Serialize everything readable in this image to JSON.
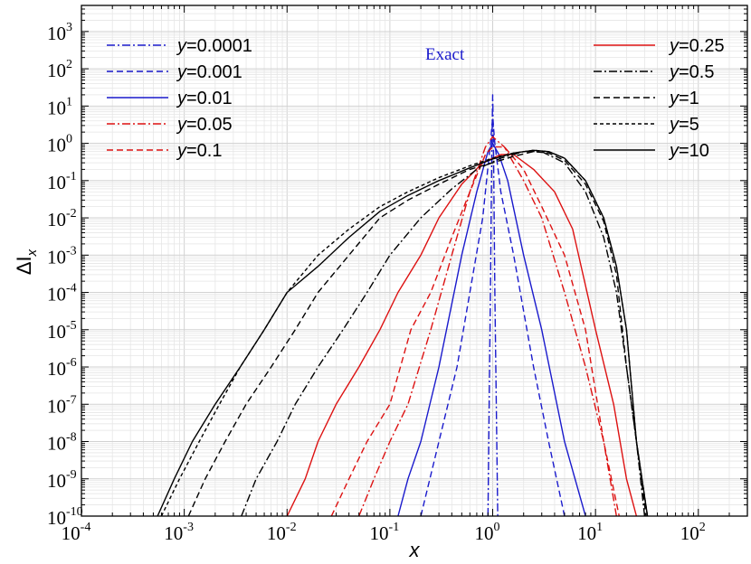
{
  "chart_data": {
    "type": "line",
    "xlabel": "x",
    "ylabel": "ΔI",
    "ylabel_sub": "x",
    "xscale": "log",
    "yscale": "log",
    "xlim": [
      0.0001,
      300
    ],
    "ylim": [
      1e-10,
      5000
    ],
    "grid": true,
    "annotation": "Exact",
    "annotation_color": "#1a1acc",
    "x_ticks": [
      {
        "base": "10",
        "exp": "-4",
        "value": 0.0001
      },
      {
        "base": "10",
        "exp": "-3",
        "value": 0.001
      },
      {
        "base": "10",
        "exp": "-2",
        "value": 0.01
      },
      {
        "base": "10",
        "exp": "-1",
        "value": 0.1
      },
      {
        "base": "10",
        "exp": "0",
        "value": 1
      },
      {
        "base": "10",
        "exp": "1",
        "value": 10
      },
      {
        "base": "10",
        "exp": "2",
        "value": 100
      }
    ],
    "y_ticks": [
      {
        "base": "10",
        "exp": "-10",
        "value": 1e-10
      },
      {
        "base": "10",
        "exp": "-9",
        "value": 1e-09
      },
      {
        "base": "10",
        "exp": "-8",
        "value": 1e-08
      },
      {
        "base": "10",
        "exp": "-7",
        "value": 1e-07
      },
      {
        "base": "10",
        "exp": "-6",
        "value": 1e-06
      },
      {
        "base": "10",
        "exp": "-5",
        "value": 1e-05
      },
      {
        "base": "10",
        "exp": "-4",
        "value": 0.0001
      },
      {
        "base": "10",
        "exp": "-3",
        "value": 0.001
      },
      {
        "base": "10",
        "exp": "-2",
        "value": 0.01
      },
      {
        "base": "10",
        "exp": "-1",
        "value": 0.1
      },
      {
        "base": "10",
        "exp": "0",
        "value": 1
      },
      {
        "base": "10",
        "exp": "1",
        "value": 10
      },
      {
        "base": "10",
        "exp": "2",
        "value": 100
      },
      {
        "base": "10",
        "exp": "3",
        "value": 1000
      }
    ],
    "legend_left": [
      "s0",
      "s1",
      "s2",
      "s3",
      "s4"
    ],
    "legend_right": [
      "s5",
      "s6",
      "s7",
      "s8",
      "s9"
    ],
    "legend_prefix": "y",
    "series": [
      {
        "id": "s0",
        "name": "=0.0001",
        "color": "#1a1acc",
        "dash": "dashdot",
        "x": [
          0.9,
          0.95,
          0.98,
          1.0,
          1.02,
          1.05,
          1.12
        ],
        "y": [
          1e-10,
          0.0001,
          0.5,
          20,
          0.5,
          0.0001,
          1e-10
        ]
      },
      {
        "id": "s1",
        "name": "=0.001",
        "color": "#1a1acc",
        "dash": "dashed",
        "x": [
          0.2,
          0.3,
          0.45,
          0.6,
          0.8,
          0.95,
          1.0,
          1.05,
          1.2,
          1.6,
          2.5,
          3.5,
          5.0
        ],
        "y": [
          1e-10,
          1e-08,
          1e-06,
          0.0001,
          0.01,
          1.0,
          5.0,
          1.0,
          0.05,
          0.001,
          1e-06,
          1e-08,
          1e-10
        ]
      },
      {
        "id": "s2",
        "name": "=0.01",
        "color": "#1a1acc",
        "dash": "solid",
        "x": [
          0.12,
          0.15,
          0.2,
          0.3,
          0.5,
          0.7,
          0.9,
          1.0,
          1.15,
          1.4,
          2.0,
          3.0,
          5.0,
          8.0
        ],
        "y": [
          1e-10,
          1e-09,
          1e-08,
          1e-06,
          0.001,
          0.05,
          0.6,
          1.0,
          0.5,
          0.1,
          0.001,
          1e-05,
          1e-08,
          1e-10
        ]
      },
      {
        "id": "s3",
        "name": "=0.05",
        "color": "#dd1111",
        "dash": "dashdot",
        "x": [
          0.05,
          0.07,
          0.1,
          0.15,
          0.25,
          0.4,
          0.6,
          0.85,
          1.0,
          1.3,
          2.0,
          3.0,
          5.0,
          8.0,
          12.0,
          16.0
        ],
        "y": [
          1e-10,
          1e-09,
          1e-08,
          1e-07,
          1e-05,
          0.001,
          0.05,
          0.8,
          1.5,
          0.8,
          0.1,
          0.01,
          0.0001,
          1e-06,
          1e-08,
          1e-10
        ]
      },
      {
        "id": "s4",
        "name": "=0.1",
        "color": "#dd1111",
        "dash": "dashed",
        "x": [
          0.027,
          0.04,
          0.06,
          0.1,
          0.16,
          0.25,
          0.4,
          0.6,
          0.85,
          1.0,
          1.3,
          2.0,
          3.0,
          5.0,
          8.0,
          12.0,
          17.0
        ],
        "y": [
          1e-10,
          1e-09,
          1e-08,
          1e-07,
          1e-05,
          0.0001,
          0.003,
          0.05,
          0.5,
          0.8,
          0.8,
          0.2,
          0.02,
          0.001,
          1e-05,
          1e-08,
          1e-10
        ]
      },
      {
        "id": "s5",
        "name": "=0.25",
        "color": "#dd1111",
        "dash": "solid",
        "x": [
          0.01,
          0.015,
          0.02,
          0.03,
          0.05,
          0.08,
          0.12,
          0.2,
          0.3,
          0.5,
          0.8,
          1.2,
          1.6,
          2.5,
          4.0,
          6.0,
          10.0,
          15.0,
          20.0,
          25.0
        ],
        "y": [
          1e-10,
          1e-09,
          1e-08,
          1e-07,
          1e-06,
          1e-05,
          0.0001,
          0.001,
          0.01,
          0.08,
          0.3,
          0.5,
          0.5,
          0.2,
          0.05,
          0.005,
          1e-05,
          1e-07,
          1e-09,
          1e-10
        ]
      },
      {
        "id": "s6",
        "name": "=0.5",
        "color": "#000000",
        "dash": "dashdot",
        "x": [
          0.0036,
          0.005,
          0.008,
          0.012,
          0.02,
          0.035,
          0.06,
          0.1,
          0.2,
          0.4,
          0.7,
          1.2,
          2.0,
          3.0,
          5.0,
          8.0,
          12.0,
          16.0,
          20.0,
          25.0,
          30.0
        ],
        "y": [
          1e-10,
          1e-09,
          1e-08,
          1e-07,
          1e-06,
          1e-05,
          0.0001,
          0.001,
          0.01,
          0.06,
          0.2,
          0.4,
          0.6,
          0.6,
          0.3,
          0.05,
          0.003,
          0.0001,
          1e-06,
          1e-08,
          1e-10
        ]
      },
      {
        "id": "s7",
        "name": "=1",
        "color": "#000000",
        "dash": "dashed",
        "x": [
          0.0011,
          0.0016,
          0.0025,
          0.004,
          0.007,
          0.012,
          0.02,
          0.04,
          0.08,
          0.15,
          0.3,
          0.6,
          1.0,
          1.6,
          2.5,
          3.5,
          5.0,
          8.0,
          12.0,
          16.0,
          20.0,
          25.0,
          31.0
        ],
        "y": [
          1e-10,
          1e-09,
          1e-08,
          1e-07,
          1e-06,
          1e-05,
          0.0001,
          0.001,
          0.01,
          0.03,
          0.08,
          0.2,
          0.3,
          0.45,
          0.6,
          0.55,
          0.35,
          0.08,
          0.008,
          0.0003,
          1e-06,
          1e-08,
          1e-10
        ]
      },
      {
        "id": "s8",
        "name": "=5",
        "color": "#000000",
        "dash": "shortdash",
        "x": [
          0.0006,
          0.0009,
          0.0014,
          0.0022,
          0.0035,
          0.006,
          0.01,
          0.02,
          0.04,
          0.08,
          0.15,
          0.3,
          0.6,
          1.0,
          1.6,
          2.5,
          3.5,
          5.0,
          8.0,
          12.0,
          16.0,
          20.0,
          25.0,
          32.0
        ],
        "y": [
          1e-10,
          1e-09,
          1e-08,
          1e-07,
          1e-06,
          1e-05,
          0.0001,
          0.001,
          0.005,
          0.02,
          0.05,
          0.12,
          0.25,
          0.4,
          0.55,
          0.65,
          0.6,
          0.4,
          0.1,
          0.01,
          0.0005,
          1e-05,
          1e-08,
          1e-10
        ]
      },
      {
        "id": "s9",
        "name": "=10",
        "color": "#000000",
        "dash": "solid",
        "x": [
          0.00055,
          0.0008,
          0.0012,
          0.002,
          0.0035,
          0.006,
          0.01,
          0.02,
          0.04,
          0.08,
          0.15,
          0.3,
          0.6,
          1.0,
          1.6,
          2.5,
          3.5,
          5.0,
          8.0,
          12.0,
          16.0,
          20.0,
          25.0,
          32.0
        ],
        "y": [
          1e-10,
          1e-09,
          1e-08,
          1e-07,
          1e-06,
          1e-05,
          0.0001,
          0.0005,
          0.003,
          0.015,
          0.04,
          0.1,
          0.22,
          0.38,
          0.55,
          0.65,
          0.6,
          0.4,
          0.1,
          0.01,
          0.0005,
          1e-05,
          1e-08,
          1e-10
        ]
      }
    ]
  }
}
